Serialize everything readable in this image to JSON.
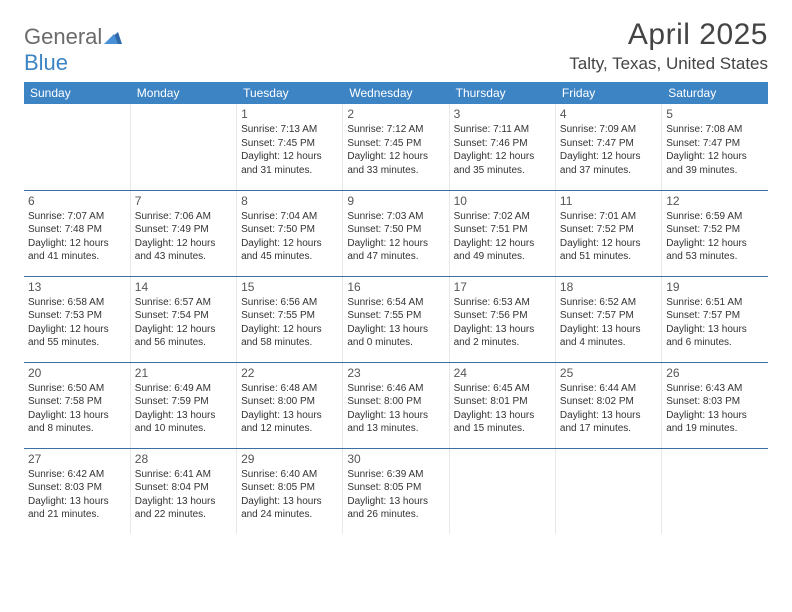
{
  "brand": {
    "part1": "General",
    "part2": "Blue"
  },
  "title": "April 2025",
  "location": "Talty, Texas, United States",
  "style": {
    "header_bg": "#3d84c4",
    "header_fg": "#ffffff",
    "row_border": "#3d6fa0",
    "cell_border": "#e8e8e8",
    "text_color": "#333333",
    "daynum_color": "#555555",
    "logo_gray": "#6b6b6b",
    "logo_blue": "#3d84c4",
    "title_fontsize": 30,
    "location_fontsize": 17,
    "dayheader_fontsize": 12,
    "daynum_fontsize": 12,
    "info_fontsize": 10
  },
  "day_headers": [
    "Sunday",
    "Monday",
    "Tuesday",
    "Wednesday",
    "Thursday",
    "Friday",
    "Saturday"
  ],
  "weeks": [
    [
      null,
      null,
      {
        "n": "1",
        "sr": "7:13 AM",
        "ss": "7:45 PM",
        "dl": "12 hours and 31 minutes."
      },
      {
        "n": "2",
        "sr": "7:12 AM",
        "ss": "7:45 PM",
        "dl": "12 hours and 33 minutes."
      },
      {
        "n": "3",
        "sr": "7:11 AM",
        "ss": "7:46 PM",
        "dl": "12 hours and 35 minutes."
      },
      {
        "n": "4",
        "sr": "7:09 AM",
        "ss": "7:47 PM",
        "dl": "12 hours and 37 minutes."
      },
      {
        "n": "5",
        "sr": "7:08 AM",
        "ss": "7:47 PM",
        "dl": "12 hours and 39 minutes."
      }
    ],
    [
      {
        "n": "6",
        "sr": "7:07 AM",
        "ss": "7:48 PM",
        "dl": "12 hours and 41 minutes."
      },
      {
        "n": "7",
        "sr": "7:06 AM",
        "ss": "7:49 PM",
        "dl": "12 hours and 43 minutes."
      },
      {
        "n": "8",
        "sr": "7:04 AM",
        "ss": "7:50 PM",
        "dl": "12 hours and 45 minutes."
      },
      {
        "n": "9",
        "sr": "7:03 AM",
        "ss": "7:50 PM",
        "dl": "12 hours and 47 minutes."
      },
      {
        "n": "10",
        "sr": "7:02 AM",
        "ss": "7:51 PM",
        "dl": "12 hours and 49 minutes."
      },
      {
        "n": "11",
        "sr": "7:01 AM",
        "ss": "7:52 PM",
        "dl": "12 hours and 51 minutes."
      },
      {
        "n": "12",
        "sr": "6:59 AM",
        "ss": "7:52 PM",
        "dl": "12 hours and 53 minutes."
      }
    ],
    [
      {
        "n": "13",
        "sr": "6:58 AM",
        "ss": "7:53 PM",
        "dl": "12 hours and 55 minutes."
      },
      {
        "n": "14",
        "sr": "6:57 AM",
        "ss": "7:54 PM",
        "dl": "12 hours and 56 minutes."
      },
      {
        "n": "15",
        "sr": "6:56 AM",
        "ss": "7:55 PM",
        "dl": "12 hours and 58 minutes."
      },
      {
        "n": "16",
        "sr": "6:54 AM",
        "ss": "7:55 PM",
        "dl": "13 hours and 0 minutes."
      },
      {
        "n": "17",
        "sr": "6:53 AM",
        "ss": "7:56 PM",
        "dl": "13 hours and 2 minutes."
      },
      {
        "n": "18",
        "sr": "6:52 AM",
        "ss": "7:57 PM",
        "dl": "13 hours and 4 minutes."
      },
      {
        "n": "19",
        "sr": "6:51 AM",
        "ss": "7:57 PM",
        "dl": "13 hours and 6 minutes."
      }
    ],
    [
      {
        "n": "20",
        "sr": "6:50 AM",
        "ss": "7:58 PM",
        "dl": "13 hours and 8 minutes."
      },
      {
        "n": "21",
        "sr": "6:49 AM",
        "ss": "7:59 PM",
        "dl": "13 hours and 10 minutes."
      },
      {
        "n": "22",
        "sr": "6:48 AM",
        "ss": "8:00 PM",
        "dl": "13 hours and 12 minutes."
      },
      {
        "n": "23",
        "sr": "6:46 AM",
        "ss": "8:00 PM",
        "dl": "13 hours and 13 minutes."
      },
      {
        "n": "24",
        "sr": "6:45 AM",
        "ss": "8:01 PM",
        "dl": "13 hours and 15 minutes."
      },
      {
        "n": "25",
        "sr": "6:44 AM",
        "ss": "8:02 PM",
        "dl": "13 hours and 17 minutes."
      },
      {
        "n": "26",
        "sr": "6:43 AM",
        "ss": "8:03 PM",
        "dl": "13 hours and 19 minutes."
      }
    ],
    [
      {
        "n": "27",
        "sr": "6:42 AM",
        "ss": "8:03 PM",
        "dl": "13 hours and 21 minutes."
      },
      {
        "n": "28",
        "sr": "6:41 AM",
        "ss": "8:04 PM",
        "dl": "13 hours and 22 minutes."
      },
      {
        "n": "29",
        "sr": "6:40 AM",
        "ss": "8:05 PM",
        "dl": "13 hours and 24 minutes."
      },
      {
        "n": "30",
        "sr": "6:39 AM",
        "ss": "8:05 PM",
        "dl": "13 hours and 26 minutes."
      },
      null,
      null,
      null
    ]
  ],
  "labels": {
    "sunrise": "Sunrise:",
    "sunset": "Sunset:",
    "daylight": "Daylight:"
  }
}
